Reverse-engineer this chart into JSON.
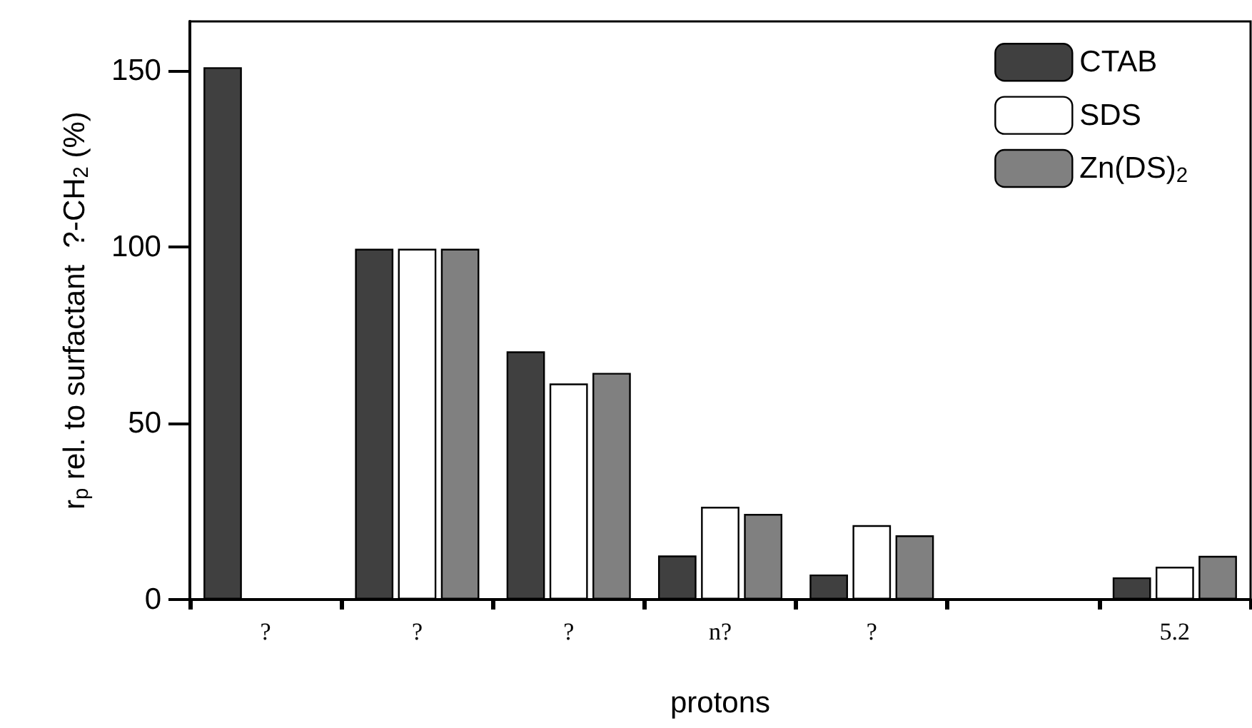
{
  "chart_data": {
    "type": "bar",
    "xlabel": "protons",
    "ylabel": "r$_{p}$ rel. to surfactant  ?-CH$_{2}$ (%)",
    "categories": [
      "?",
      "?",
      "?",
      "n?",
      "?",
      null,
      "5.2"
    ],
    "series": [
      {
        "name": "CTAB",
        "color": "#404040",
        "values": [
          151,
          99.5,
          70.4,
          12.5,
          7.1,
          null,
          6.3
        ]
      },
      {
        "name": "SDS",
        "color": "#ffffff",
        "values": [
          null,
          99.5,
          61.3,
          26.3,
          21.1,
          null,
          9.3
        ]
      },
      {
        "name": "Zn(DS)$_{2}$",
        "color": "#808080",
        "values": [
          null,
          99.5,
          64.3,
          24.3,
          18.2,
          null,
          12.4
        ]
      }
    ],
    "ylim": [
      0,
      164
    ],
    "yticks": [
      0,
      50,
      100,
      150
    ],
    "grid": false,
    "legend": "top right"
  }
}
